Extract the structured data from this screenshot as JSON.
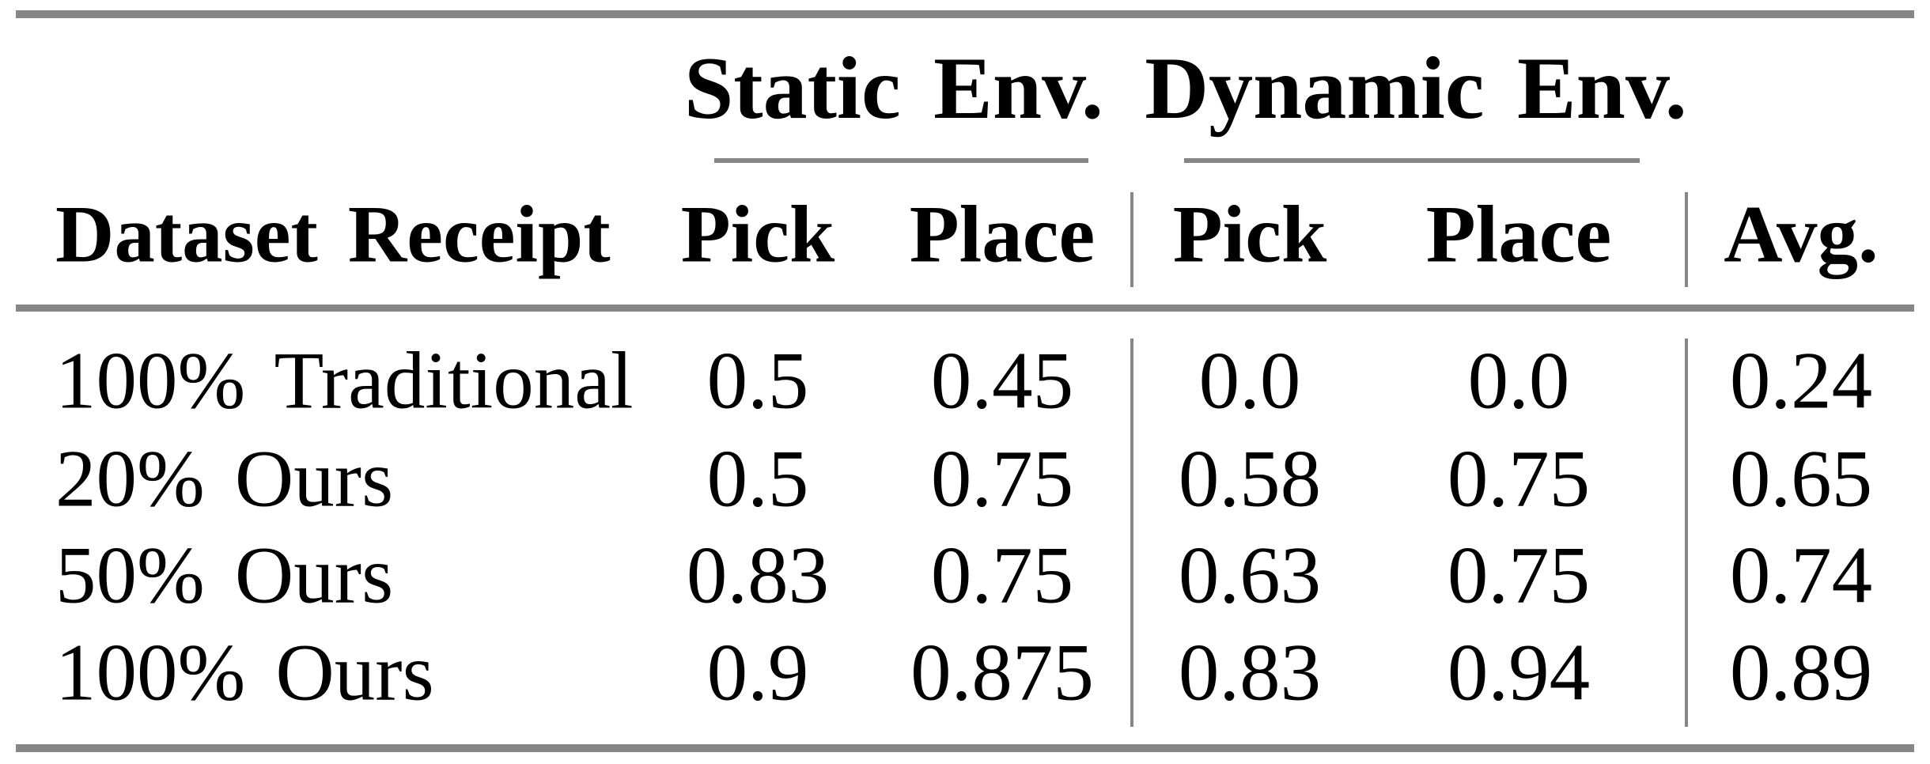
{
  "table": {
    "row_header_label": "Dataset Receipt",
    "group_headers": {
      "static": "Static Env.",
      "dynamic": "Dynamic Env."
    },
    "sub_headers": {
      "static_pick": "Pick",
      "static_place": "Place",
      "dynamic_pick": "Pick",
      "dynamic_place": "Place",
      "avg": "Avg."
    },
    "rows": [
      {
        "label": "100% Traditional",
        "static_pick": "0.5",
        "static_place": "0.45",
        "dynamic_pick": "0.0",
        "dynamic_place": "0.0",
        "avg": "0.24"
      },
      {
        "label": "20% Ours",
        "static_pick": "0.5",
        "static_place": "0.75",
        "dynamic_pick": "0.58",
        "dynamic_place": "0.75",
        "avg": "0.65"
      },
      {
        "label": "50% Ours",
        "static_pick": "0.83",
        "static_place": "0.75",
        "dynamic_pick": "0.63",
        "dynamic_place": "0.75",
        "avg": "0.74"
      },
      {
        "label": "100% Ours",
        "static_pick": "0.9",
        "static_place": "0.875",
        "dynamic_pick": "0.83",
        "dynamic_place": "0.94",
        "avg": "0.89"
      }
    ],
    "colors": {
      "rule_gray": "#868686",
      "text": "#000000",
      "background": "#ffffff"
    }
  },
  "chart_data": {
    "type": "table",
    "title": "",
    "column_groups": [
      {
        "label": "Static Env.",
        "columns": [
          "Pick",
          "Place"
        ]
      },
      {
        "label": "Dynamic Env.",
        "columns": [
          "Pick",
          "Place"
        ]
      }
    ],
    "columns": [
      "Dataset Receipt",
      "Static Pick",
      "Static Place",
      "Dynamic Pick",
      "Dynamic Place",
      "Avg."
    ],
    "rows": [
      [
        "100% Traditional",
        0.5,
        0.45,
        0.0,
        0.0,
        0.24
      ],
      [
        "20% Ours",
        0.5,
        0.75,
        0.58,
        0.75,
        0.65
      ],
      [
        "50% Ours",
        0.83,
        0.75,
        0.63,
        0.75,
        0.74
      ],
      [
        "100% Ours",
        0.9,
        0.875,
        0.83,
        0.94,
        0.89
      ]
    ]
  }
}
